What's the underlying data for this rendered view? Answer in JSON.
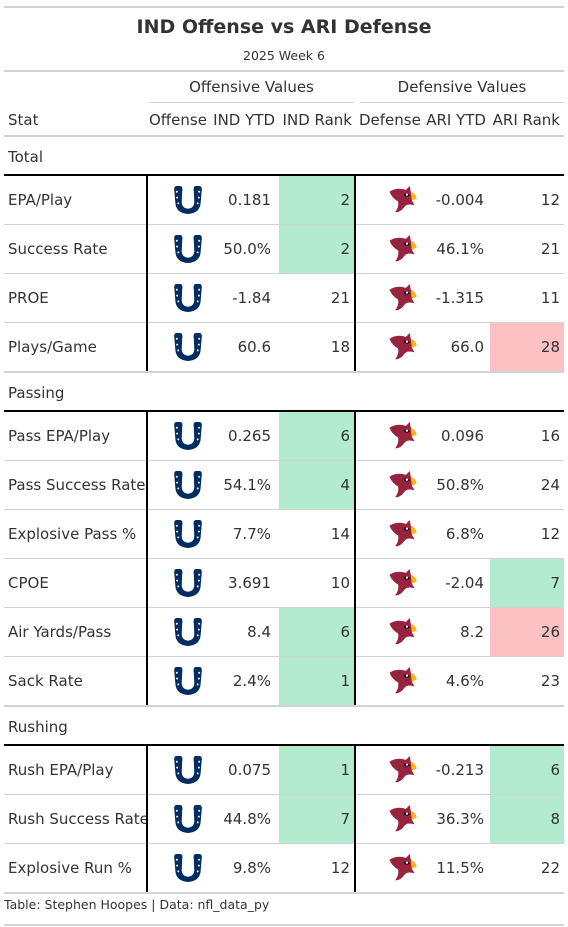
{
  "title": "IND Offense vs ARI Defense",
  "subtitle": "2025 Week 6",
  "spanners": {
    "offense": "Offensive Values",
    "defense": "Defensive Values"
  },
  "columns": {
    "stat": "Stat",
    "offense": "Offense",
    "ind_ytd": "IND YTD",
    "ind_rank": "IND Rank",
    "defense": "Defense",
    "ari_ytd": "ARI YTD",
    "ari_rank": "ARI Rank"
  },
  "icons": {
    "offense": "colts-horseshoe-icon",
    "defense": "cardinals-bird-icon"
  },
  "colors": {
    "good": "#b3ebcf",
    "bad": "#fcc2c3",
    "colts_blue": "#002c5f",
    "cardinals_red": "#97233f"
  },
  "groups": [
    {
      "name": "Total",
      "rows": [
        {
          "stat": "EPA/Play",
          "ind_ytd": "0.181",
          "ind_rank": "2",
          "ind_hl": "good",
          "ari_ytd": "-0.004",
          "ari_rank": "12",
          "ari_hl": ""
        },
        {
          "stat": "Success Rate",
          "ind_ytd": "50.0%",
          "ind_rank": "2",
          "ind_hl": "good",
          "ari_ytd": "46.1%",
          "ari_rank": "21",
          "ari_hl": ""
        },
        {
          "stat": "PROE",
          "ind_ytd": "-1.84",
          "ind_rank": "21",
          "ind_hl": "",
          "ari_ytd": "-1.315",
          "ari_rank": "11",
          "ari_hl": ""
        },
        {
          "stat": "Plays/Game",
          "ind_ytd": "60.6",
          "ind_rank": "18",
          "ind_hl": "",
          "ari_ytd": "66.0",
          "ari_rank": "28",
          "ari_hl": "bad"
        }
      ]
    },
    {
      "name": "Passing",
      "rows": [
        {
          "stat": "Pass EPA/Play",
          "ind_ytd": "0.265",
          "ind_rank": "6",
          "ind_hl": "good",
          "ari_ytd": "0.096",
          "ari_rank": "16",
          "ari_hl": ""
        },
        {
          "stat": "Pass Success Rate",
          "ind_ytd": "54.1%",
          "ind_rank": "4",
          "ind_hl": "good",
          "ari_ytd": "50.8%",
          "ari_rank": "24",
          "ari_hl": ""
        },
        {
          "stat": "Explosive Pass %",
          "ind_ytd": "7.7%",
          "ind_rank": "14",
          "ind_hl": "",
          "ari_ytd": "6.8%",
          "ari_rank": "12",
          "ari_hl": ""
        },
        {
          "stat": "CPOE",
          "ind_ytd": "3.691",
          "ind_rank": "10",
          "ind_hl": "",
          "ari_ytd": "-2.04",
          "ari_rank": "7",
          "ari_hl": "good"
        },
        {
          "stat": "Air Yards/Pass",
          "ind_ytd": "8.4",
          "ind_rank": "6",
          "ind_hl": "good",
          "ari_ytd": "8.2",
          "ari_rank": "26",
          "ari_hl": "bad"
        },
        {
          "stat": "Sack Rate",
          "ind_ytd": "2.4%",
          "ind_rank": "1",
          "ind_hl": "good",
          "ari_ytd": "4.6%",
          "ari_rank": "23",
          "ari_hl": ""
        }
      ]
    },
    {
      "name": "Rushing",
      "rows": [
        {
          "stat": "Rush EPA/Play",
          "ind_ytd": "0.075",
          "ind_rank": "1",
          "ind_hl": "good",
          "ari_ytd": "-0.213",
          "ari_rank": "6",
          "ari_hl": "good"
        },
        {
          "stat": "Rush Success Rate",
          "ind_ytd": "44.8%",
          "ind_rank": "7",
          "ind_hl": "good",
          "ari_ytd": "36.3%",
          "ari_rank": "8",
          "ari_hl": "good"
        },
        {
          "stat": "Explosive Run %",
          "ind_ytd": "9.8%",
          "ind_rank": "12",
          "ind_hl": "",
          "ari_ytd": "11.5%",
          "ari_rank": "22",
          "ari_hl": ""
        }
      ]
    }
  ],
  "footer": "Table: Stephen Hoopes | Data: nfl_data_py"
}
